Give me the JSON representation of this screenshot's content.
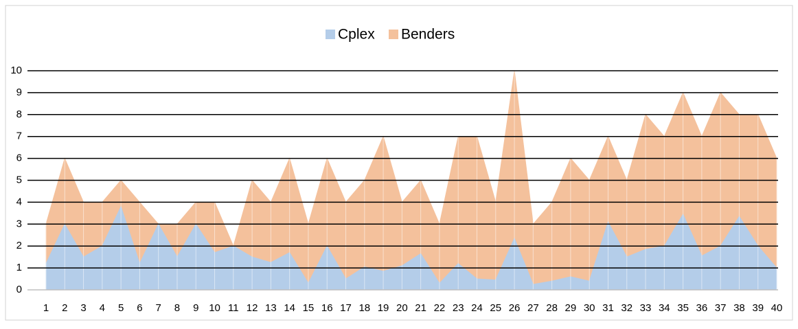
{
  "chart_data": {
    "type": "area",
    "categories": [
      "1",
      "2",
      "3",
      "4",
      "5",
      "6",
      "7",
      "8",
      "9",
      "10",
      "11",
      "12",
      "13",
      "14",
      "15",
      "16",
      "17",
      "18",
      "19",
      "20",
      "21",
      "22",
      "23",
      "24",
      "25",
      "26",
      "27",
      "28",
      "29",
      "30",
      "31",
      "32",
      "33",
      "34",
      "35",
      "36",
      "37",
      "38",
      "39",
      "40"
    ],
    "series": [
      {
        "name": "Cplex",
        "color": "#b4cde9",
        "values": [
          1.2,
          3.0,
          1.5,
          2.0,
          3.8,
          1.2,
          3.0,
          1.5,
          3.0,
          1.7,
          2.0,
          1.5,
          1.25,
          1.7,
          0.3,
          2.0,
          0.5,
          1.05,
          0.85,
          1.1,
          1.65,
          0.3,
          1.2,
          0.5,
          0.45,
          2.35,
          0.25,
          0.4,
          0.6,
          0.4,
          3.1,
          1.5,
          1.85,
          2.0,
          3.45,
          1.55,
          2.0,
          3.35,
          2.0,
          1.0
        ]
      },
      {
        "name": "Benders",
        "color": "#f4c19c",
        "values": [
          3,
          6,
          4,
          4,
          5,
          4,
          3,
          3,
          4,
          4,
          2,
          5,
          4,
          6,
          3,
          6,
          4,
          5,
          7,
          4,
          5,
          3,
          7,
          7,
          4,
          10,
          3,
          4,
          6,
          5,
          7,
          5,
          8,
          7,
          9,
          7,
          9,
          8,
          8,
          6
        ]
      }
    ],
    "ylim": [
      0,
      10
    ],
    "yticks": [
      0,
      1,
      2,
      3,
      4,
      5,
      6,
      7,
      8,
      9,
      10
    ],
    "grid": true,
    "legend": "top"
  }
}
